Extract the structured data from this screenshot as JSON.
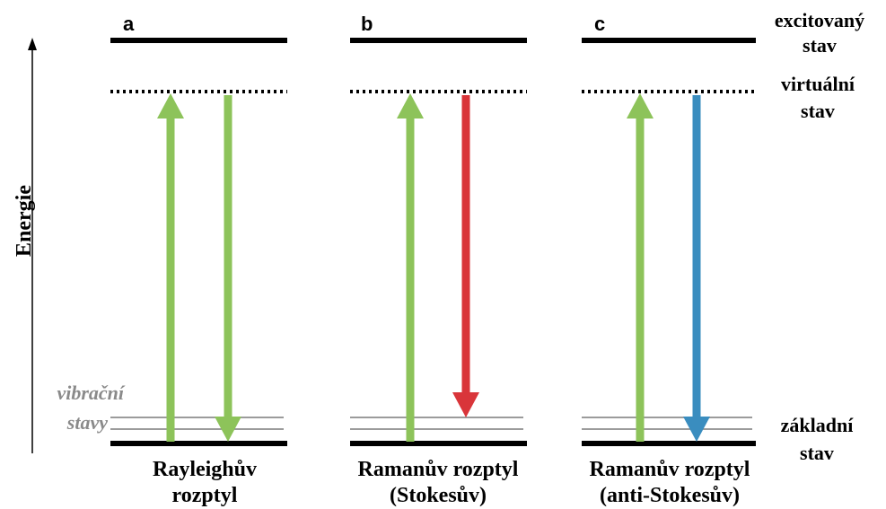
{
  "axis": {
    "label": "Energie"
  },
  "vibrational": {
    "line1": "vibrační",
    "line2": "stavy"
  },
  "states": {
    "excited": {
      "line1": "excitovaný",
      "line2": "stav"
    },
    "virtual": {
      "line1": "virtuální",
      "line2": "stav"
    },
    "ground": {
      "line1": "základní",
      "line2": "stav"
    }
  },
  "panels": [
    {
      "letter": "a",
      "caption1": "Rayleighův",
      "caption2": "rozptyl",
      "down_color": "#8dc35a",
      "down_end": "ground"
    },
    {
      "letter": "b",
      "caption1": "Ramanův rozptyl",
      "caption2": "(Stokesův)",
      "down_color": "#d9353a",
      "down_end": "vibrational"
    },
    {
      "letter": "c",
      "caption1": "Ramanův rozptyl",
      "caption2": "(anti-Stokesův)",
      "down_color": "#3a8dbf",
      "down_end": "ground"
    }
  ],
  "colors": {
    "up_arrow": "#8dc35a",
    "levels": "#000000",
    "vib_lines": "#7a7a7a"
  }
}
